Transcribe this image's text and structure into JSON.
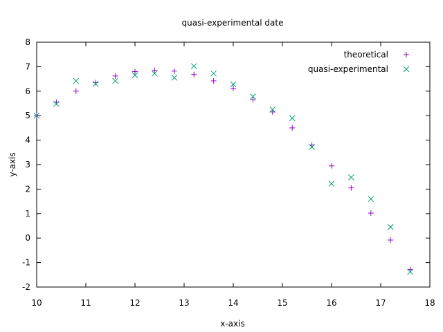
{
  "chart_data": {
    "type": "scatter",
    "title": "quasi-experimental date",
    "xlabel": "x-axis",
    "ylabel": "y-axis",
    "xlim": [
      10,
      18
    ],
    "ylim": [
      -2,
      8
    ],
    "x_ticks": [
      10,
      11,
      12,
      13,
      14,
      15,
      16,
      17,
      18
    ],
    "y_ticks": [
      -2,
      -1,
      0,
      1,
      2,
      3,
      4,
      5,
      6,
      7,
      8
    ],
    "grid": false,
    "legend_position": "top-right",
    "series": [
      {
        "name": "theoretical",
        "marker": "plus",
        "color": "#9400d3",
        "points": [
          [
            10.0,
            5.0
          ],
          [
            10.4,
            5.55
          ],
          [
            10.8,
            6.0
          ],
          [
            11.2,
            6.35
          ],
          [
            11.6,
            6.62
          ],
          [
            12.0,
            6.8
          ],
          [
            12.4,
            6.85
          ],
          [
            12.8,
            6.82
          ],
          [
            13.2,
            6.68
          ],
          [
            13.6,
            6.42
          ],
          [
            14.0,
            6.12
          ],
          [
            14.4,
            5.65
          ],
          [
            14.8,
            5.15
          ],
          [
            15.2,
            4.5
          ],
          [
            15.6,
            3.8
          ],
          [
            16.0,
            2.95
          ],
          [
            16.4,
            2.05
          ],
          [
            16.8,
            1.02
          ],
          [
            17.2,
            -0.08
          ],
          [
            17.6,
            -1.28
          ]
        ]
      },
      {
        "name": "quasi-experimental",
        "marker": "cross",
        "color": "#009e73",
        "points": [
          [
            10.0,
            5.0
          ],
          [
            10.4,
            5.48
          ],
          [
            10.8,
            6.42
          ],
          [
            11.2,
            6.3
          ],
          [
            11.6,
            6.42
          ],
          [
            12.0,
            6.65
          ],
          [
            12.4,
            6.72
          ],
          [
            12.8,
            6.55
          ],
          [
            13.2,
            7.02
          ],
          [
            13.6,
            6.72
          ],
          [
            14.0,
            6.28
          ],
          [
            14.4,
            5.78
          ],
          [
            14.8,
            5.25
          ],
          [
            15.2,
            4.9
          ],
          [
            15.6,
            3.72
          ],
          [
            16.0,
            2.22
          ],
          [
            16.4,
            2.48
          ],
          [
            16.8,
            1.6
          ],
          [
            17.2,
            0.45
          ],
          [
            17.6,
            -1.38
          ]
        ]
      }
    ]
  }
}
